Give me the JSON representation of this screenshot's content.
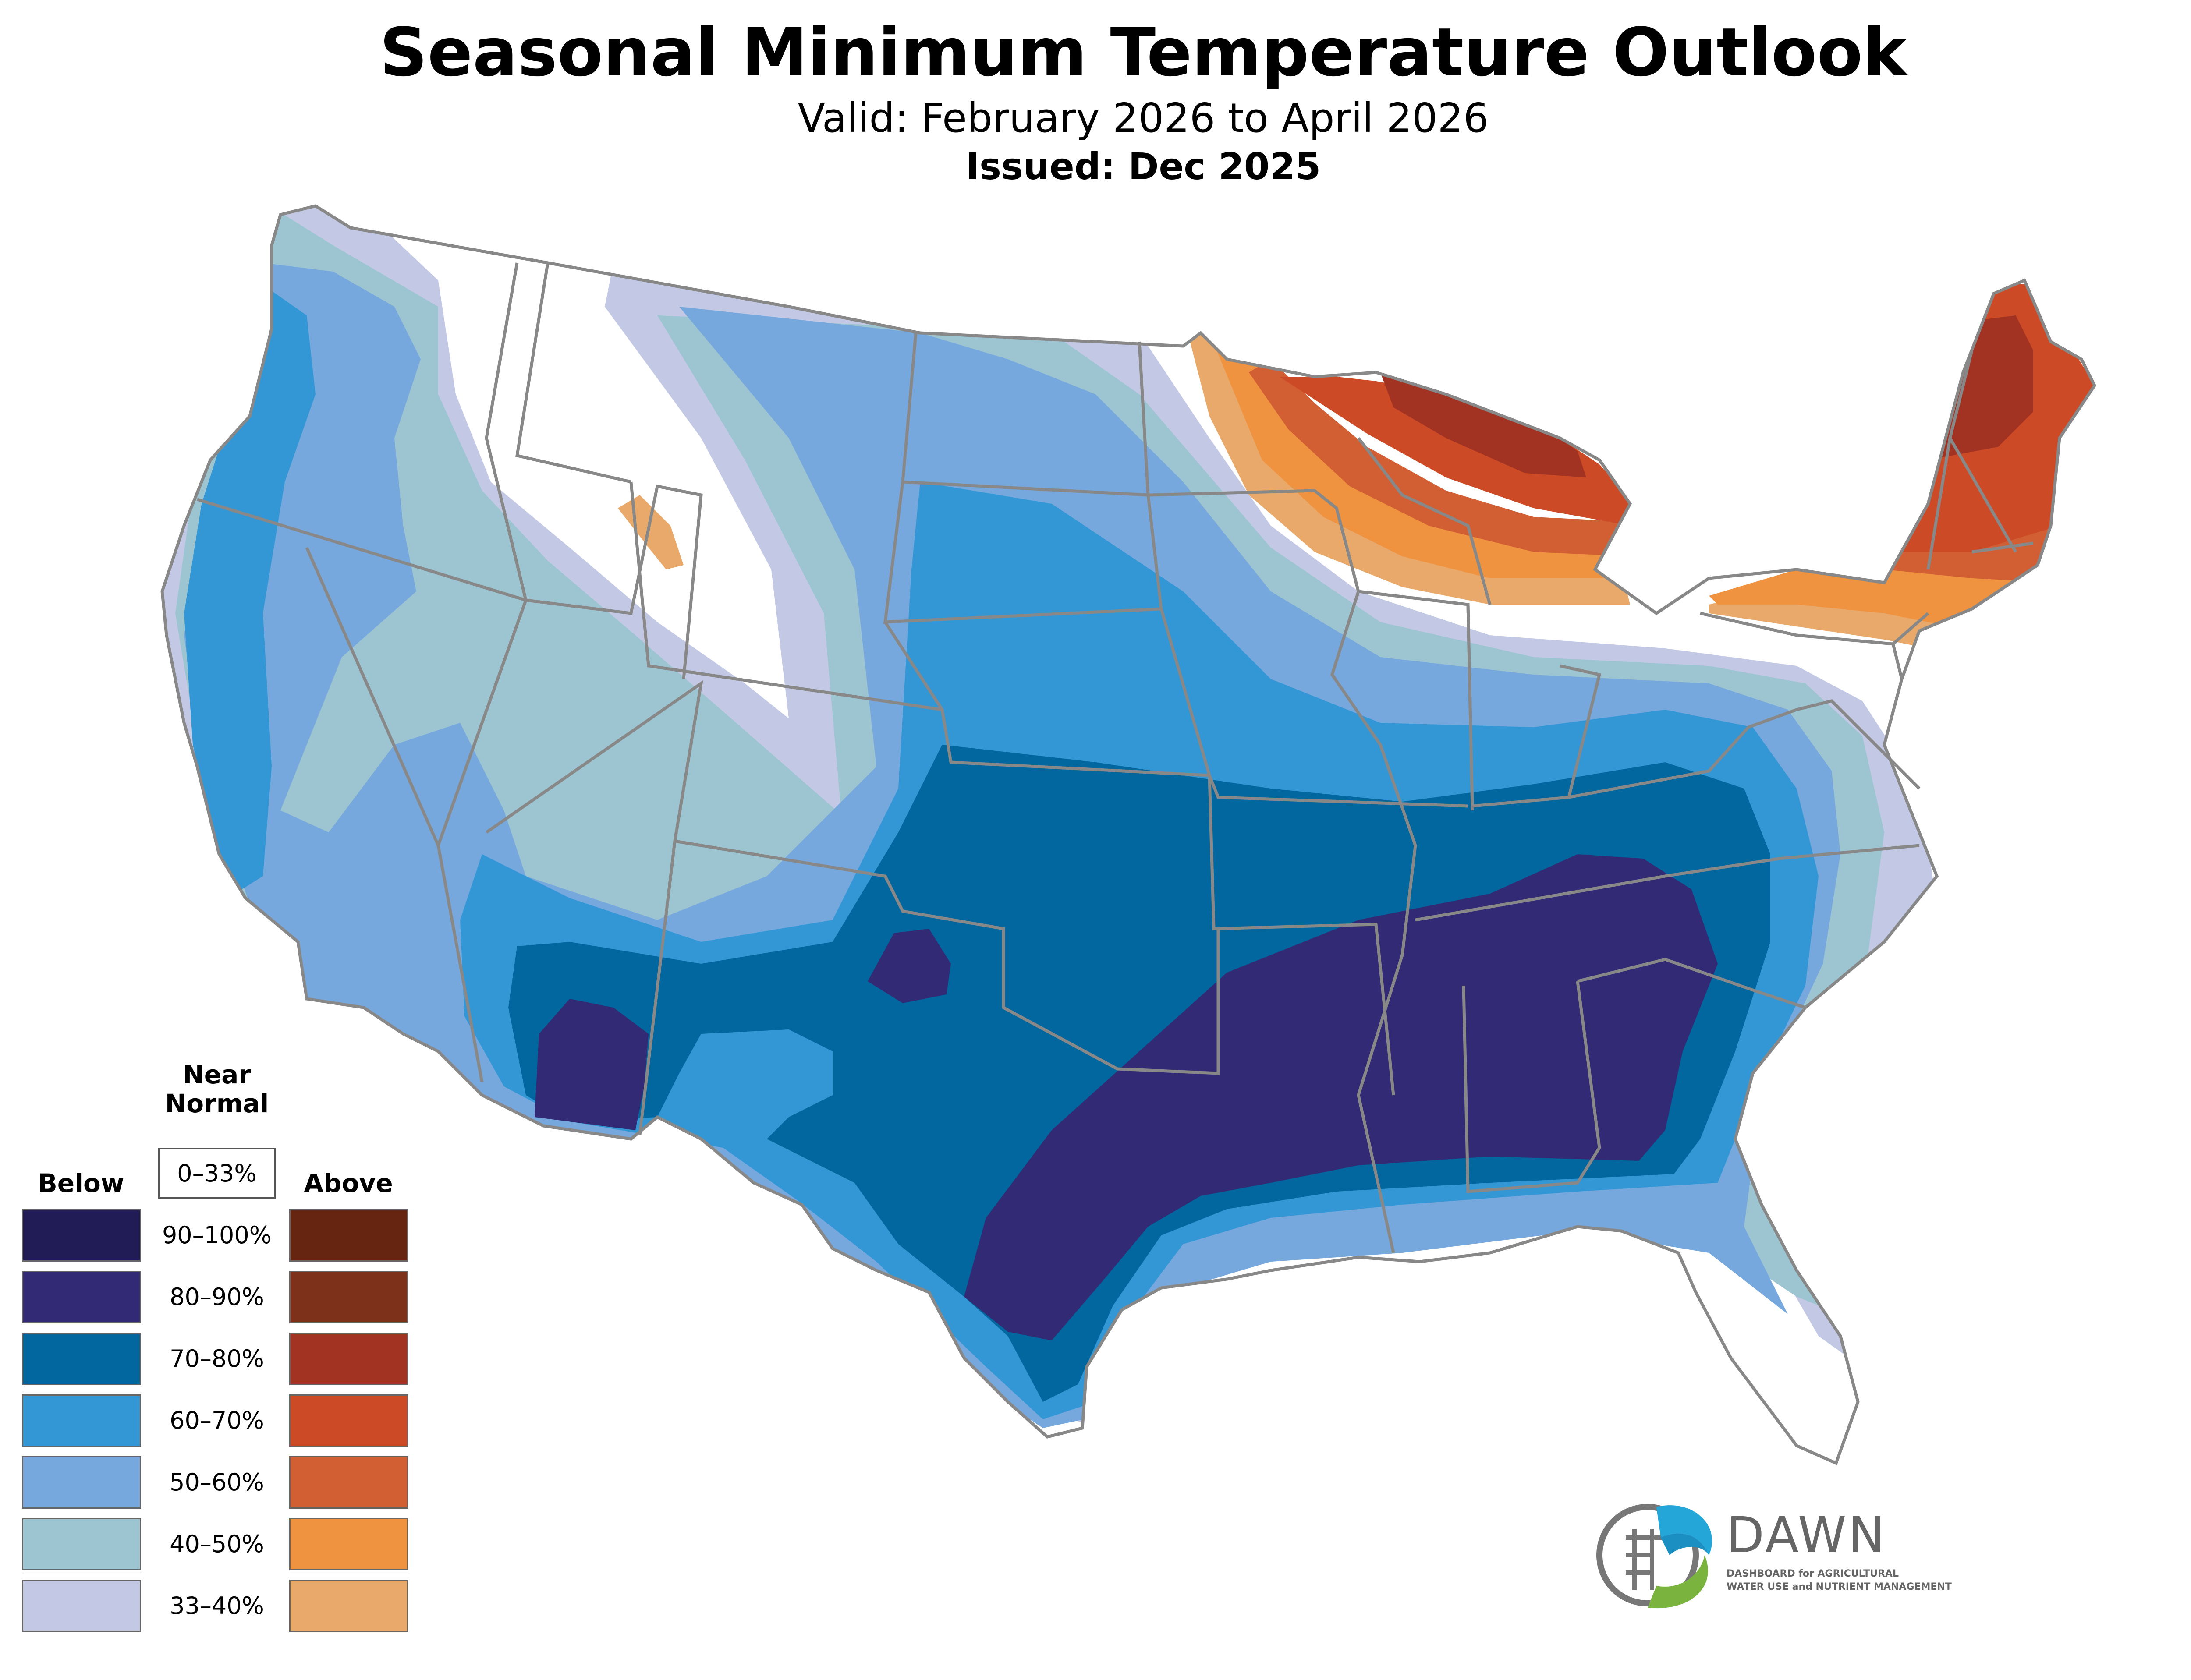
{
  "header": {
    "title": "Seasonal Minimum Temperature Outlook",
    "valid": "Valid: February 2026 to April 2026",
    "issued": "Issued: Dec 2025"
  },
  "legend": {
    "below_label": "Below",
    "above_label": "Above",
    "near_label_line1": "Near",
    "near_label_line2": "Normal",
    "near_range": "0–33%",
    "ranges": [
      "90–100%",
      "80–90%",
      "70–80%",
      "60–70%",
      "50–60%",
      "40–50%",
      "33–40%"
    ],
    "below_colors": [
      "#211c56",
      "#322a74",
      "#01679e",
      "#3497d5",
      "#76a8dd",
      "#9cc4d1",
      "#c3c9e5"
    ],
    "above_colors": [
      "#662511",
      "#7e311a",
      "#a23322",
      "#cc4a25",
      "#d15f33",
      "#ef9340",
      "#e8a96a"
    ]
  },
  "logo": {
    "name": "DAWN",
    "tagline_line1": "DASHBOARD for AGRICULTURAL",
    "tagline_line2": "WATER USE and NUTRIENT MANAGEMENT",
    "colors": {
      "blue": "#25a6d9",
      "green": "#7ab43f",
      "gray": "#777777"
    }
  }
}
